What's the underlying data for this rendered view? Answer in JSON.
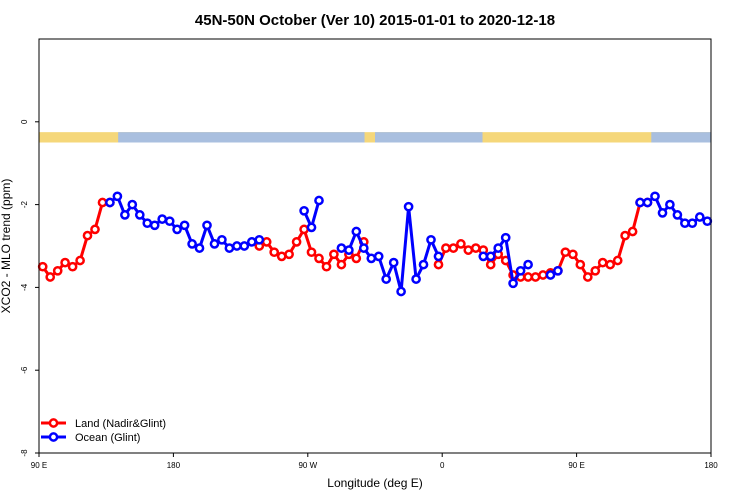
{
  "chart_data": {
    "type": "line",
    "title": "45N-50N October (Ver 10)   2015-01-01 to 2020-12-18",
    "xlabel": "Longitude (deg E)",
    "ylabel": "XCO2 - MLO trend (ppm)",
    "x_ticks": [
      {
        "value": 90,
        "label": "90 E"
      },
      {
        "value": 180,
        "label": "180"
      },
      {
        "value": 270,
        "label": "90 W"
      },
      {
        "value": 360,
        "label": "0"
      },
      {
        "value": 450,
        "label": "90 E"
      },
      {
        "value": 540,
        "label": "180"
      }
    ],
    "y_ticks": [
      {
        "value": 0,
        "label": "0"
      },
      {
        "value": -2,
        "label": "-2"
      },
      {
        "value": -4,
        "label": "-4"
      },
      {
        "value": -6,
        "label": "-6"
      },
      {
        "value": -8,
        "label": "-8"
      }
    ],
    "xlim": [
      90,
      540
    ],
    "ylim": [
      -8,
      2
    ],
    "grid": false,
    "legend_position": "bottom-left",
    "land_ocean_strip": {
      "y_range": [
        -0.25,
        -0.5
      ],
      "land_color": "#F5D77A",
      "ocean_color": "#A9BFDF",
      "ocean_ranges": [
        [
          143,
          308
        ],
        [
          315,
          387
        ],
        [
          500,
          540
        ]
      ]
    },
    "series": [
      {
        "name": "Land (Nadir&Glint)",
        "color": "#FF0000",
        "segments": [
          [
            [
              92.5,
              -3.5
            ],
            [
              97.5,
              -3.75
            ],
            [
              102.5,
              -3.6
            ],
            [
              107.5,
              -3.4
            ],
            [
              112.5,
              -3.5
            ],
            [
              117.5,
              -3.35
            ],
            [
              122.5,
              -2.75
            ],
            [
              127.5,
              -2.6
            ],
            [
              132.5,
              -1.95
            ],
            [
              137.5,
              -1.95
            ]
          ],
          [
            [
              237.5,
              -3.0
            ],
            [
              242.5,
              -2.9
            ],
            [
              247.5,
              -3.15
            ],
            [
              252.5,
              -3.25
            ],
            [
              257.5,
              -3.2
            ],
            [
              262.5,
              -2.9
            ],
            [
              267.5,
              -2.6
            ],
            [
              272.5,
              -3.15
            ],
            [
              277.5,
              -3.3
            ],
            [
              282.5,
              -3.5
            ],
            [
              287.5,
              -3.2
            ],
            [
              292.5,
              -3.45
            ],
            [
              297.5,
              -3.2
            ],
            [
              302.5,
              -3.3
            ],
            [
              307.5,
              -2.9
            ]
          ],
          [
            [
              357.5,
              -3.45
            ],
            [
              362.5,
              -3.05
            ],
            [
              367.5,
              -3.05
            ],
            [
              372.5,
              -2.95
            ],
            [
              377.5,
              -3.1
            ],
            [
              382.5,
              -3.05
            ],
            [
              387.5,
              -3.1
            ],
            [
              392.5,
              -3.45
            ],
            [
              397.5,
              -3.2
            ],
            [
              402.5,
              -3.35
            ],
            [
              407.5,
              -3.7
            ],
            [
              412.5,
              -3.75
            ],
            [
              417.5,
              -3.75
            ],
            [
              422.5,
              -3.75
            ],
            [
              427.5,
              -3.7
            ],
            [
              432.5,
              -3.65
            ],
            [
              437.5,
              -3.6
            ],
            [
              442.5,
              -3.15
            ],
            [
              447.5,
              -3.2
            ],
            [
              452.5,
              -3.45
            ],
            [
              457.5,
              -3.75
            ],
            [
              462.5,
              -3.6
            ],
            [
              467.5,
              -3.4
            ],
            [
              472.5,
              -3.45
            ],
            [
              477.5,
              -3.35
            ],
            [
              482.5,
              -2.75
            ],
            [
              487.5,
              -2.65
            ],
            [
              492.5,
              -1.95
            ],
            [
              497.5,
              -1.95
            ]
          ]
        ]
      },
      {
        "name": "Ocean (Glint)",
        "color": "#0000FF",
        "segments": [
          [
            [
              137.5,
              -1.95
            ],
            [
              142.5,
              -1.8
            ],
            [
              147.5,
              -2.25
            ],
            [
              152.5,
              -2.0
            ],
            [
              157.5,
              -2.25
            ],
            [
              162.5,
              -2.45
            ],
            [
              167.5,
              -2.5
            ],
            [
              172.5,
              -2.35
            ],
            [
              177.5,
              -2.4
            ],
            [
              182.5,
              -2.6
            ],
            [
              187.5,
              -2.5
            ],
            [
              192.5,
              -2.95
            ],
            [
              197.5,
              -3.05
            ],
            [
              202.5,
              -2.5
            ],
            [
              207.5,
              -2.95
            ],
            [
              212.5,
              -2.85
            ],
            [
              217.5,
              -3.05
            ],
            [
              222.5,
              -3.0
            ],
            [
              227.5,
              -3.0
            ],
            [
              232.5,
              -2.9
            ],
            [
              237.5,
              -2.85
            ]
          ],
          [
            [
              267.5,
              -2.15
            ],
            [
              272.5,
              -2.55
            ],
            [
              277.5,
              -1.9
            ]
          ],
          [
            [
              292.5,
              -3.05
            ],
            [
              297.5,
              -3.1
            ],
            [
              302.5,
              -2.65
            ],
            [
              307.5,
              -3.05
            ],
            [
              312.5,
              -3.3
            ],
            [
              317.5,
              -3.25
            ],
            [
              322.5,
              -3.8
            ],
            [
              327.5,
              -3.4
            ],
            [
              332.5,
              -4.1
            ],
            [
              337.5,
              -2.05
            ],
            [
              342.5,
              -3.8
            ],
            [
              347.5,
              -3.45
            ],
            [
              352.5,
              -2.85
            ],
            [
              357.5,
              -3.25
            ]
          ],
          [
            [
              387.5,
              -3.25
            ],
            [
              392.5,
              -3.25
            ],
            [
              397.5,
              -3.05
            ],
            [
              402.5,
              -2.8
            ],
            [
              407.5,
              -3.9
            ],
            [
              412.5,
              -3.6
            ],
            [
              417.5,
              -3.45
            ]
          ],
          [
            [
              432.5,
              -3.7
            ],
            [
              437.5,
              -3.6
            ]
          ],
          [
            [
              492.5,
              -1.95
            ],
            [
              497.5,
              -1.95
            ],
            [
              502.5,
              -1.8
            ],
            [
              507.5,
              -2.2
            ],
            [
              512.5,
              -2.0
            ],
            [
              517.5,
              -2.25
            ],
            [
              522.5,
              -2.45
            ],
            [
              527.5,
              -2.45
            ],
            [
              532.5,
              -2.3
            ],
            [
              537.5,
              -2.4
            ]
          ]
        ]
      }
    ]
  }
}
